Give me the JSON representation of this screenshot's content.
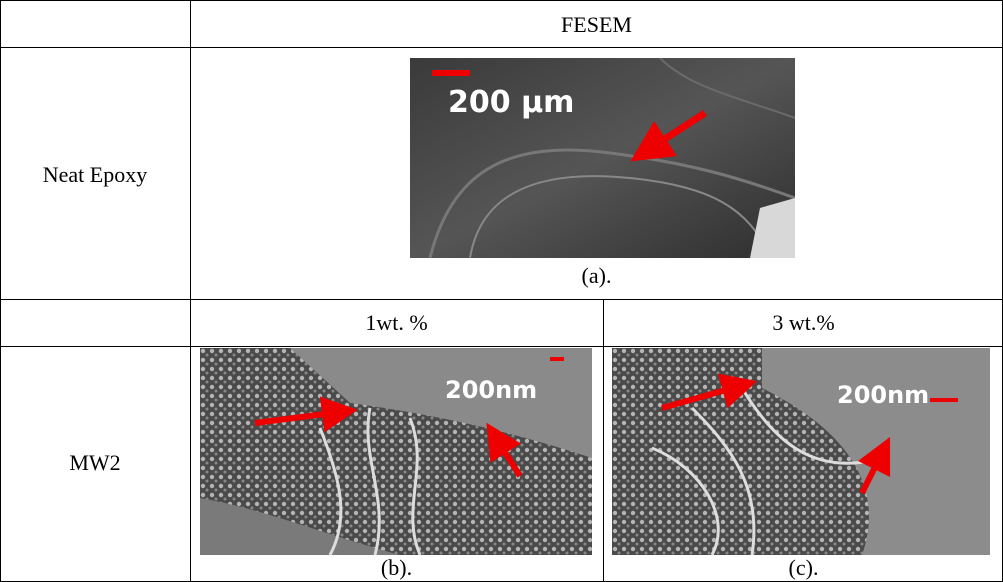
{
  "table": {
    "column_header": "FESEM",
    "rows": [
      {
        "label": "Neat Epoxy",
        "panels": [
          {
            "scale_bar": "200 µm",
            "caption": "(a)."
          }
        ]
      },
      {
        "label": "MW2",
        "columns": [
          "1wt. %",
          "3 wt.%"
        ],
        "panels": [
          {
            "scale_bar": "200nm",
            "caption": "(b)."
          },
          {
            "scale_bar": "200nm",
            "caption": "(c)."
          }
        ]
      }
    ]
  }
}
